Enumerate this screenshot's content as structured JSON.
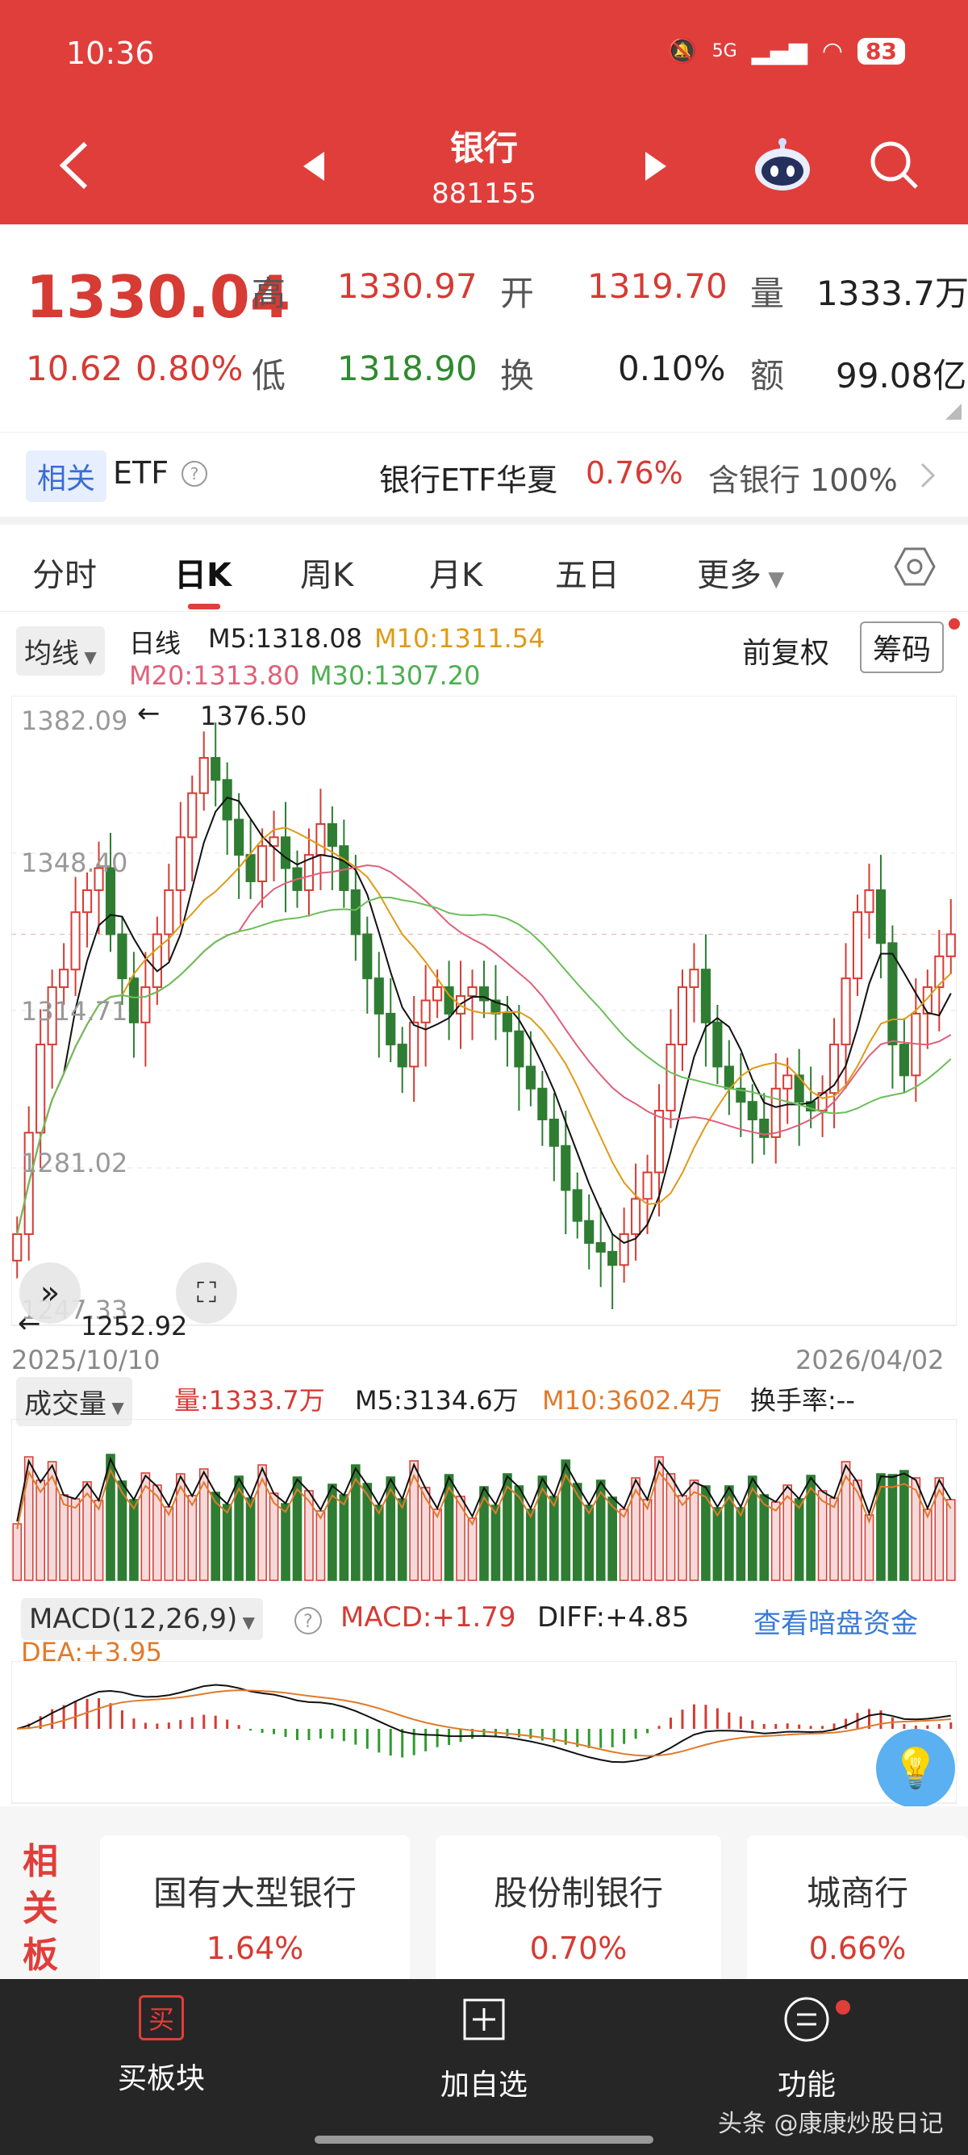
{
  "status": {
    "time": "10:36",
    "network": "5G",
    "battery": "83"
  },
  "nav": {
    "title": "银行",
    "code": "881155"
  },
  "quote": {
    "price": "1330.04",
    "change": "10.62",
    "change_pct": "0.80%",
    "high_label": "高",
    "high": "1330.97",
    "open_label": "开",
    "open": "1319.70",
    "vol_label": "量",
    "vol": "1333.7万",
    "low_label": "低",
    "low": "1318.90",
    "turn_label": "换",
    "turn": "0.10%",
    "amt_label": "额",
    "amt": "99.08亿"
  },
  "etf": {
    "tag": "相关",
    "label": "ETF",
    "name": "银行ETF华夏",
    "pct": "0.76%",
    "hold": "含银行 100%"
  },
  "tabs": [
    "分时",
    "日K",
    "周K",
    "月K",
    "五日",
    "更多"
  ],
  "kline": {
    "ma_select": "均线",
    "period": "日线",
    "m5": "M5:1318.08",
    "m10": "M10:1311.54",
    "m20": "M20:1313.80",
    "m30": "M30:1307.20",
    "adjust": "前复权",
    "chips": "筹码",
    "y_ticks": [
      "1382.09",
      "1348.40",
      "1314.71",
      "1281.02",
      "1247.33"
    ],
    "max_mark": "1376.50",
    "min_mark": "1252.92",
    "date_start": "2025/10/10",
    "date_end": "2026/04/02"
  },
  "volume": {
    "select": "成交量",
    "vol": "量:1333.7万",
    "m5": "M5:3134.6万",
    "m10": "M10:3602.4万",
    "turnover": "换手率:--"
  },
  "macd": {
    "select": "MACD(12,26,9)",
    "macd": "MACD:+1.79",
    "diff": "DIFF:+4.85",
    "dea": "DEA:+3.95",
    "link": "查看暗盘资金"
  },
  "sectors": {
    "title": "相关板块",
    "items": [
      {
        "name": "国有大型银行",
        "pct": "1.64%"
      },
      {
        "name": "股份制银行",
        "pct": "0.70%"
      },
      {
        "name": "城商行",
        "pct": "0.66%"
      }
    ]
  },
  "bottom": {
    "buy": "买板块",
    "add": "加自选",
    "func": "功能",
    "buy_icon": "买"
  },
  "watermark": "头条 @康康炒股日记",
  "chart_data": {
    "type": "candlestick",
    "y_range": [
      1247.33,
      1382.09
    ],
    "high_mark": 1376.5,
    "low_mark": 1252.92,
    "closes": [
      1262,
      1285,
      1305,
      1318,
      1322,
      1335,
      1340,
      1345,
      1330,
      1320,
      1310,
      1318,
      1330,
      1340,
      1352,
      1362,
      1370,
      1365,
      1356,
      1348,
      1342,
      1350,
      1352,
      1345,
      1340,
      1348,
      1355,
      1350,
      1340,
      1330,
      1320,
      1312,
      1305,
      1300,
      1310,
      1315,
      1318,
      1312,
      1316,
      1318,
      1315,
      1312,
      1308,
      1300,
      1295,
      1288,
      1282,
      1272,
      1265,
      1260,
      1258,
      1255,
      1262,
      1270,
      1276,
      1290,
      1305,
      1318,
      1322,
      1310,
      1300,
      1295,
      1292,
      1288,
      1284,
      1295,
      1298,
      1292,
      1290,
      1294,
      1305,
      1320,
      1335,
      1340,
      1328,
      1305,
      1298,
      1312,
      1318,
      1325,
      1330
    ]
  }
}
